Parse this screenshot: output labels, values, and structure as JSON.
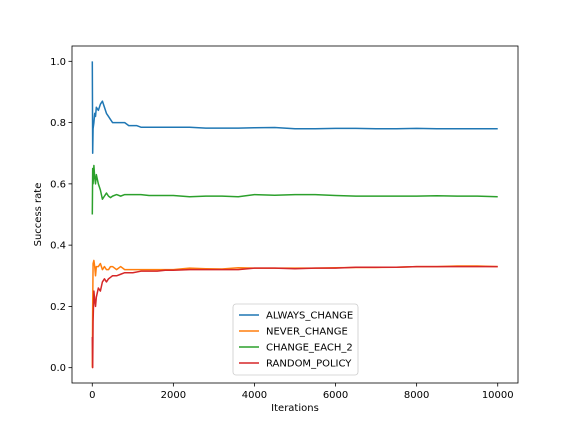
{
  "chart_data": {
    "type": "line",
    "xlabel": "Iterations",
    "ylabel": "Success rate",
    "xlim": [
      -500,
      10500
    ],
    "ylim": [
      -0.05,
      1.05
    ],
    "xticks": [
      0,
      2000,
      4000,
      6000,
      8000,
      10000
    ],
    "xtick_labels": [
      "0",
      "2000",
      "4000",
      "6000",
      "8000",
      "10000"
    ],
    "yticks": [
      0.0,
      0.2,
      0.4,
      0.6,
      0.8,
      1.0
    ],
    "ytick_labels": [
      "0.0",
      "0.2",
      "0.4",
      "0.6",
      "0.8",
      "1.0"
    ],
    "grid": false,
    "legend_position": "bottom-center",
    "series": [
      {
        "name": "ALWAYS_CHANGE",
        "color": "#1f77b4",
        "x": [
          1,
          10,
          20,
          40,
          60,
          80,
          100,
          150,
          200,
          250,
          300,
          350,
          400,
          450,
          500,
          600,
          700,
          800,
          900,
          1000,
          1100,
          1200,
          1400,
          1600,
          1800,
          2000,
          2400,
          2800,
          3200,
          3600,
          4000,
          4500,
          5000,
          5500,
          6000,
          6500,
          7000,
          7500,
          8000,
          8500,
          9000,
          9500,
          10000
        ],
        "y": [
          1.0,
          0.7,
          0.78,
          0.8,
          0.83,
          0.82,
          0.85,
          0.84,
          0.86,
          0.87,
          0.85,
          0.83,
          0.82,
          0.81,
          0.8,
          0.8,
          0.8,
          0.8,
          0.79,
          0.79,
          0.79,
          0.785,
          0.785,
          0.785,
          0.785,
          0.785,
          0.785,
          0.782,
          0.782,
          0.782,
          0.783,
          0.784,
          0.78,
          0.78,
          0.781,
          0.781,
          0.78,
          0.78,
          0.781,
          0.78,
          0.78,
          0.78,
          0.78
        ]
      },
      {
        "name": "NEVER_CHANGE",
        "color": "#ff7f0e",
        "x": [
          1,
          10,
          20,
          40,
          60,
          80,
          100,
          150,
          200,
          250,
          300,
          350,
          400,
          450,
          500,
          600,
          700,
          800,
          900,
          1000,
          1200,
          1400,
          1600,
          1800,
          2000,
          2400,
          2800,
          3200,
          3600,
          4000,
          4500,
          5000,
          5500,
          6000,
          6500,
          7000,
          7500,
          8000,
          8500,
          9000,
          9500,
          10000
        ],
        "y": [
          0.0,
          0.2,
          0.34,
          0.35,
          0.33,
          0.3,
          0.33,
          0.33,
          0.34,
          0.32,
          0.33,
          0.32,
          0.32,
          0.33,
          0.33,
          0.32,
          0.33,
          0.32,
          0.32,
          0.32,
          0.32,
          0.32,
          0.32,
          0.32,
          0.32,
          0.325,
          0.323,
          0.322,
          0.326,
          0.325,
          0.325,
          0.325,
          0.325,
          0.326,
          0.327,
          0.327,
          0.328,
          0.33,
          0.33,
          0.332,
          0.332,
          0.33
        ]
      },
      {
        "name": "CHANGE_EACH_2",
        "color": "#2ca02c",
        "x": [
          1,
          10,
          20,
          40,
          60,
          80,
          100,
          150,
          200,
          250,
          300,
          350,
          400,
          450,
          500,
          600,
          700,
          800,
          900,
          1000,
          1200,
          1400,
          1600,
          1800,
          2000,
          2400,
          2800,
          3200,
          3600,
          4000,
          4500,
          5000,
          5500,
          6000,
          6500,
          7000,
          7500,
          8000,
          8500,
          9000,
          9500,
          10000
        ],
        "y": [
          0.5,
          0.65,
          0.6,
          0.66,
          0.62,
          0.6,
          0.63,
          0.6,
          0.58,
          0.55,
          0.56,
          0.57,
          0.56,
          0.555,
          0.56,
          0.565,
          0.56,
          0.565,
          0.565,
          0.565,
          0.565,
          0.562,
          0.562,
          0.562,
          0.562,
          0.558,
          0.56,
          0.56,
          0.558,
          0.565,
          0.563,
          0.565,
          0.565,
          0.562,
          0.56,
          0.56,
          0.56,
          0.56,
          0.561,
          0.56,
          0.56,
          0.558
        ]
      },
      {
        "name": "RANDOM_POLICY",
        "color": "#d62728",
        "x": [
          1,
          10,
          20,
          40,
          60,
          80,
          100,
          150,
          200,
          250,
          300,
          350,
          400,
          450,
          500,
          600,
          700,
          800,
          900,
          1000,
          1200,
          1400,
          1600,
          1800,
          2000,
          2400,
          2800,
          3200,
          3600,
          4000,
          4500,
          5000,
          5500,
          6000,
          6500,
          7000,
          7500,
          8000,
          8500,
          9000,
          9500,
          10000
        ],
        "y": [
          0.1,
          0.0,
          0.15,
          0.25,
          0.22,
          0.2,
          0.23,
          0.26,
          0.25,
          0.28,
          0.29,
          0.28,
          0.29,
          0.295,
          0.3,
          0.3,
          0.305,
          0.31,
          0.31,
          0.31,
          0.315,
          0.315,
          0.315,
          0.318,
          0.318,
          0.32,
          0.32,
          0.32,
          0.32,
          0.325,
          0.325,
          0.323,
          0.325,
          0.325,
          0.328,
          0.328,
          0.328,
          0.33,
          0.33,
          0.33,
          0.33,
          0.33
        ]
      }
    ]
  }
}
